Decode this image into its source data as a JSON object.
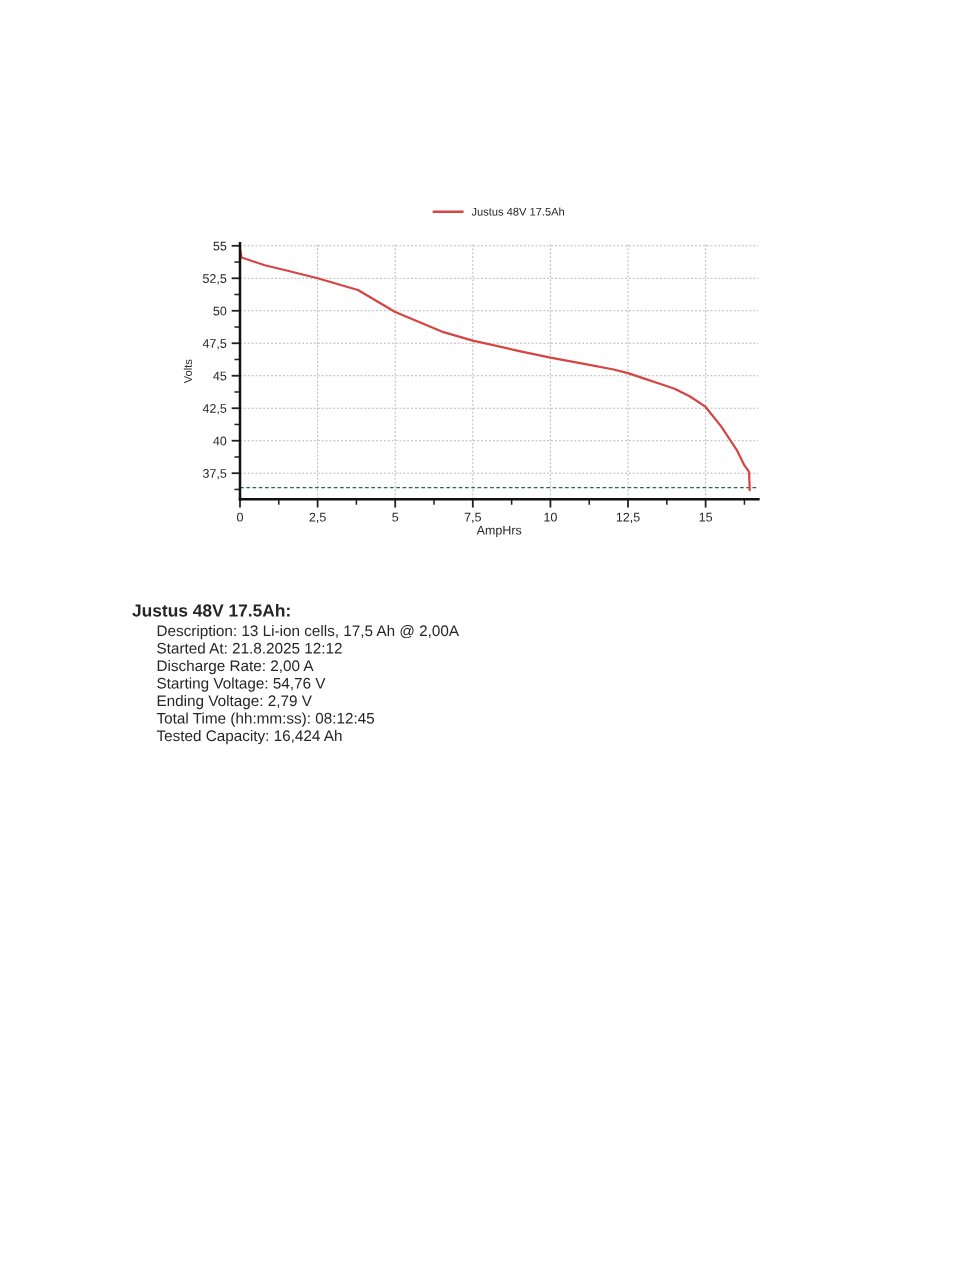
{
  "chart_data": {
    "type": "line",
    "xlabel": "AmpHrs",
    "ylabel": "Volts",
    "x": [
      0,
      0.05,
      0.8,
      1.5,
      2.5,
      3.8,
      5,
      6.5,
      7.5,
      9,
      10,
      11,
      12,
      12.5,
      13,
      13.5,
      14,
      14.5,
      15,
      15.5,
      16,
      16.25,
      16.4,
      16.42
    ],
    "series": [
      {
        "name": "Justus 48V 17.5Ah",
        "color": "#d64541",
        "values": [
          54.76,
          54.1,
          53.5,
          53.1,
          52.5,
          51.6,
          49.9,
          48.4,
          47.7,
          46.9,
          46.4,
          45.95,
          45.5,
          45.2,
          44.8,
          44.4,
          44.0,
          43.4,
          42.6,
          41.1,
          39.3,
          38.1,
          37.6,
          36.2
        ]
      }
    ],
    "xlim": [
      0,
      16.7
    ],
    "ylim": [
      35.5,
      55.2
    ],
    "xticks": [
      0,
      {
        "value": 1.25,
        "label": null
      },
      {
        "value": 2.5,
        "label": "2,5"
      },
      {
        "value": 3.75,
        "label": null
      },
      5,
      {
        "value": 6.25,
        "label": null
      },
      {
        "value": 7.5,
        "label": "7,5"
      },
      {
        "value": 8.75,
        "label": null
      },
      10,
      {
        "value": 11.25,
        "label": null
      },
      {
        "value": 12.5,
        "label": "12,5"
      },
      {
        "value": 13.75,
        "label": null
      },
      15,
      {
        "value": 16.25,
        "label": null
      }
    ],
    "yticks": [
      {
        "value": 36.25,
        "label": null
      },
      {
        "value": 37.5,
        "label": "37,5"
      },
      {
        "value": 38.75,
        "label": null
      },
      40,
      {
        "value": 41.25,
        "label": null
      },
      {
        "value": 42.5,
        "label": "42,5"
      },
      {
        "value": 43.75,
        "label": null
      },
      45,
      {
        "value": 46.25,
        "label": null
      },
      {
        "value": 47.5,
        "label": "47,5"
      },
      {
        "value": 48.75,
        "label": null
      },
      50,
      {
        "value": 51.25,
        "label": null
      },
      {
        "value": 52.5,
        "label": "52,5"
      },
      {
        "value": 53.75,
        "label": null
      },
      55
    ],
    "ref_lines": [
      {
        "axis": "y",
        "value": 36.4,
        "color": "#2f6b3c",
        "line_style": "dashed"
      }
    ],
    "grid": true,
    "legend": "top",
    "marker": "none",
    "line_style": "solid",
    "annotations": [
      "Justus 48V 17.5Ah:",
      "Description: 13 Li-ion cells, 17,5 Ah @ 2,00A",
      "Started At: 21.8.2025 12:12",
      "Discharge Rate: 2,00 A",
      "Starting Voltage: 54,76 V",
      "Ending Voltage: 2,79 V",
      "Total Time (hh:mm:ss): 08:12:45",
      "Tested Capacity: 16,424 Ah"
    ]
  }
}
